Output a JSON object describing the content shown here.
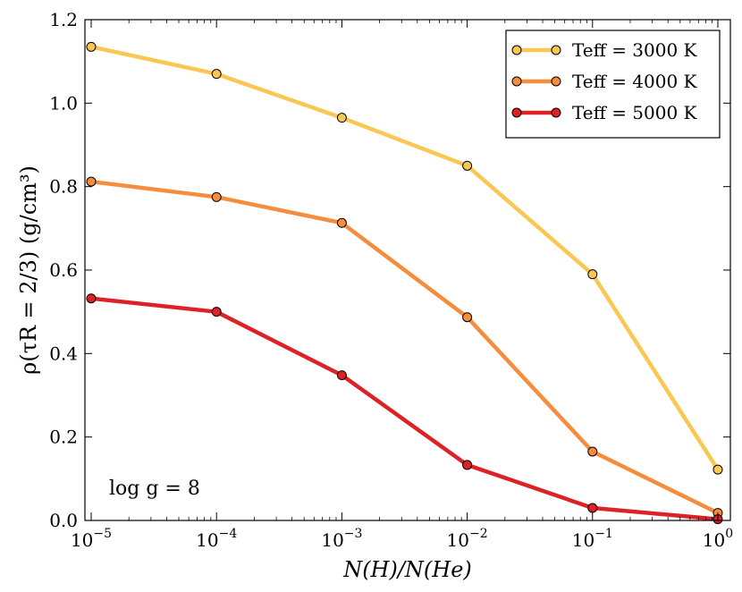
{
  "chart_data": {
    "type": "line",
    "xscale": "log",
    "x": [
      1e-05,
      0.0001,
      0.001,
      0.01,
      0.1,
      1
    ],
    "x_tick_labels": [
      {
        "base": "10",
        "exp": "−5"
      },
      {
        "base": "10",
        "exp": "−4"
      },
      {
        "base": "10",
        "exp": "−3"
      },
      {
        "base": "10",
        "exp": "−2"
      },
      {
        "base": "10",
        "exp": "−1"
      },
      {
        "base": "10",
        "exp": "0"
      }
    ],
    "xlim_log10": [
      -5.05,
      0.1
    ],
    "ylim": [
      0.0,
      1.2
    ],
    "y_ticks": [
      0.0,
      0.2,
      0.4,
      0.6,
      0.8,
      1.0,
      1.2
    ],
    "y_tick_labels": [
      "0.0",
      "0.2",
      "0.4",
      "0.6",
      "0.8",
      "1.0",
      "1.2"
    ],
    "xlabel": "N(H)/N(He)",
    "ylabel": "ρ(τR = 2/3) (g/cm³)",
    "legend_position": "top-right",
    "annotation": "log g = 8",
    "series": [
      {
        "name": "Teff = 3000 K",
        "color": "#fac752",
        "values": [
          1.135,
          1.07,
          0.965,
          0.85,
          0.59,
          0.122
        ]
      },
      {
        "name": "Teff = 4000 K",
        "color": "#f58d3c",
        "values": [
          0.812,
          0.775,
          0.713,
          0.487,
          0.165,
          0.018
        ]
      },
      {
        "name": "Teff = 5000 K",
        "color": "#dc2227",
        "values": [
          0.532,
          0.5,
          0.348,
          0.133,
          0.03,
          0.003
        ]
      }
    ]
  }
}
